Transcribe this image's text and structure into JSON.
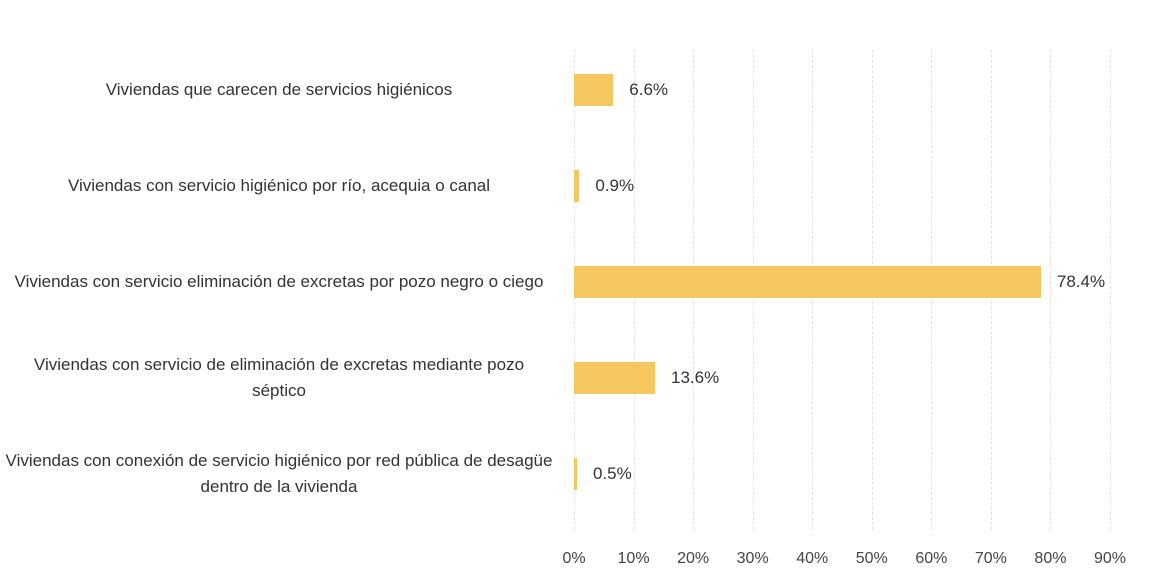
{
  "chart_data": {
    "type": "bar",
    "orientation": "horizontal",
    "categories": [
      "Viviendas que carecen de servicios higiénicos",
      "Viviendas con servicio higiénico por río, acequia o canal",
      "Viviendas con servicio eliminación de excretas por pozo negro o ciego",
      "Viviendas con servicio de eliminación de excretas mediante pozo séptico",
      "Viviendas con conexión de servicio higiénico por red pública de desagüe dentro de la vivienda"
    ],
    "values": [
      6.6,
      0.9,
      78.4,
      13.6,
      0.5
    ],
    "value_labels": [
      "6.6%",
      "0.9%",
      "78.4%",
      "13.6%",
      "0.5%"
    ],
    "color": "#f7c75f",
    "xlim": [
      0,
      90
    ],
    "xticks": [
      {
        "value": 0,
        "label": "0%"
      },
      {
        "value": 10,
        "label": "10%"
      },
      {
        "value": 20,
        "label": "20%"
      },
      {
        "value": 30,
        "label": "30%"
      },
      {
        "value": 40,
        "label": "40%"
      },
      {
        "value": 50,
        "label": "50%"
      },
      {
        "value": 60,
        "label": "60%"
      },
      {
        "value": 70,
        "label": "70%"
      },
      {
        "value": 80,
        "label": "80%"
      },
      {
        "value": 90,
        "label": "90%"
      }
    ],
    "grid": true
  }
}
